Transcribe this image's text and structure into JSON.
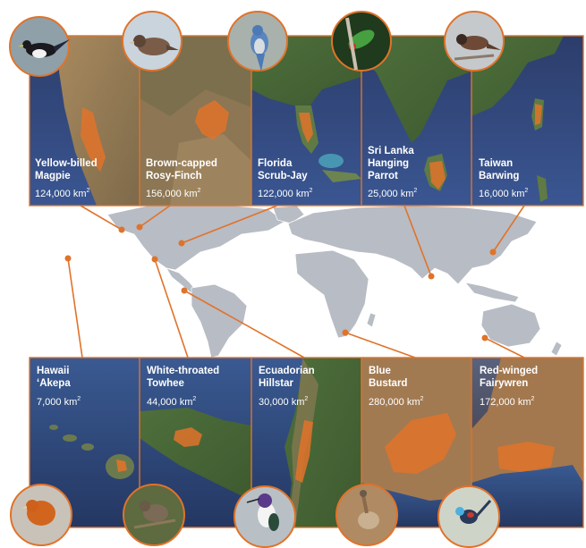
{
  "accent_color": "#e0732a",
  "world_map_color": "#b8bcc4",
  "top_panels": [
    {
      "name_lines": [
        "Yellow-billed",
        "Magpie"
      ],
      "area": "124,000 km",
      "area_sup": "2",
      "bird_icon": "magpie-icon"
    },
    {
      "name_lines": [
        "Brown-capped",
        "Rosy-Finch"
      ],
      "area": "156,000 km",
      "area_sup": "2",
      "bird_icon": "rosy-finch-icon"
    },
    {
      "name_lines": [
        "Florida",
        "Scrub-Jay"
      ],
      "area": "122,000 km",
      "area_sup": "2",
      "bird_icon": "scrub-jay-icon"
    },
    {
      "name_lines": [
        "Sri Lanka",
        "Hanging",
        "Parrot"
      ],
      "area": "25,000 km",
      "area_sup": "2",
      "bird_icon": "hanging-parrot-icon"
    },
    {
      "name_lines": [
        "Taiwan",
        "Barwing"
      ],
      "area": "16,000 km",
      "area_sup": "2",
      "bird_icon": "barwing-icon"
    }
  ],
  "bottom_panels": [
    {
      "name_lines": [
        "Hawaii",
        "‘Akepa"
      ],
      "area": "7,000 km",
      "area_sup": "2",
      "bird_icon": "akepa-icon"
    },
    {
      "name_lines": [
        "White-throated",
        "Towhee"
      ],
      "area": "44,000 km",
      "area_sup": "2",
      "bird_icon": "towhee-icon"
    },
    {
      "name_lines": [
        "Ecuadorian",
        "Hillstar"
      ],
      "area": "30,000 km",
      "area_sup": "2",
      "bird_icon": "hillstar-icon"
    },
    {
      "name_lines": [
        "Blue",
        "Bustard"
      ],
      "area": "280,000 km",
      "area_sup": "2",
      "bird_icon": "bustard-icon"
    },
    {
      "name_lines": [
        "Red-winged",
        "Fairywren"
      ],
      "area": "172,000 km",
      "area_sup": "2",
      "bird_icon": "fairywren-icon"
    }
  ]
}
